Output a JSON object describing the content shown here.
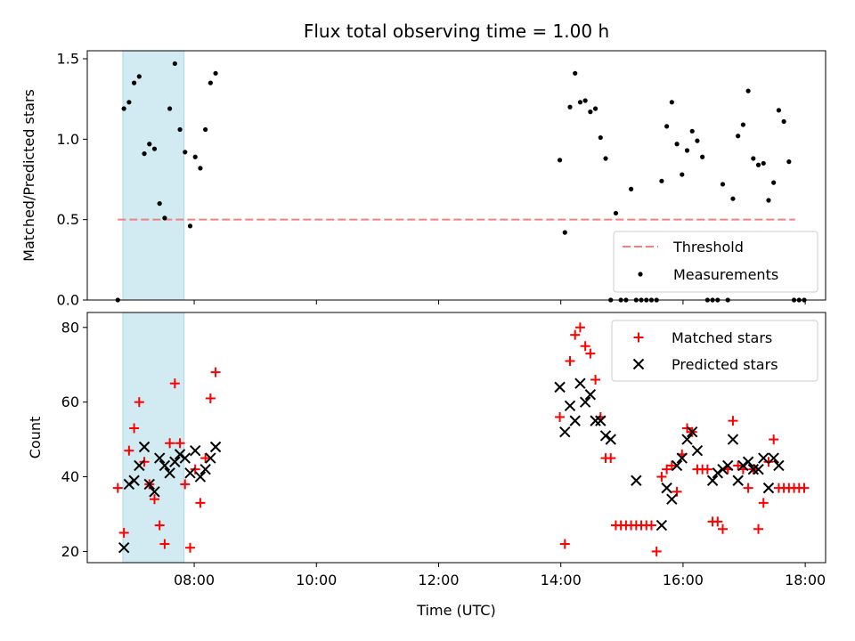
{
  "chart_data": [
    {
      "type": "scatter",
      "title": "Flux total observing time = 1.00 h",
      "xlabel": "",
      "ylabel": "Matched/Predicted stars",
      "xlim": [
        "06:15",
        "18:20"
      ],
      "ylim": [
        0,
        1.55
      ],
      "yticks": [
        0.0,
        0.5,
        1.0,
        1.5
      ],
      "ytick_labels": [
        "0.0",
        "0.5",
        "1.0",
        "1.5"
      ],
      "highlight_span": [
        "06:50",
        "07:50"
      ],
      "threshold": {
        "name": "Threshold",
        "y": 0.5,
        "x": [
          "06:45",
          "17:50"
        ],
        "color": "#f08080"
      },
      "legend": {
        "location": "lower right",
        "entries": [
          "Threshold",
          "Measurements"
        ]
      },
      "series": [
        {
          "name": "Measurements",
          "color": "#000000",
          "marker": "dot",
          "points": [
            [
              "06:45",
              0.0
            ],
            [
              "06:51",
              1.19
            ],
            [
              "06:56",
              1.23
            ],
            [
              "07:01",
              1.35
            ],
            [
              "07:06",
              1.39
            ],
            [
              "07:11",
              0.91
            ],
            [
              "07:16",
              0.97
            ],
            [
              "07:21",
              0.94
            ],
            [
              "07:26",
              0.6
            ],
            [
              "07:31",
              0.51
            ],
            [
              "07:36",
              1.19
            ],
            [
              "07:41",
              1.47
            ],
            [
              "07:46",
              1.06
            ],
            [
              "07:51",
              0.92
            ],
            [
              "07:56",
              0.46
            ],
            [
              "08:01",
              0.89
            ],
            [
              "08:06",
              0.82
            ],
            [
              "08:11",
              1.06
            ],
            [
              "08:16",
              1.35
            ],
            [
              "08:21",
              1.41
            ],
            [
              "13:59",
              0.87
            ],
            [
              "14:04",
              0.42
            ],
            [
              "14:09",
              1.2
            ],
            [
              "14:14",
              1.41
            ],
            [
              "14:19",
              1.23
            ],
            [
              "14:24",
              1.24
            ],
            [
              "14:29",
              1.17
            ],
            [
              "14:34",
              1.19
            ],
            [
              "14:39",
              1.01
            ],
            [
              "14:44",
              0.88
            ],
            [
              "14:49",
              0.0
            ],
            [
              "14:54",
              0.54
            ],
            [
              "14:59",
              0.0
            ],
            [
              "15:04",
              0.0
            ],
            [
              "15:09",
              0.69
            ],
            [
              "15:14",
              0.0
            ],
            [
              "15:19",
              0.0
            ],
            [
              "15:24",
              0.0
            ],
            [
              "15:29",
              0.0
            ],
            [
              "15:34",
              0.0
            ],
            [
              "15:39",
              0.74
            ],
            [
              "15:44",
              1.08
            ],
            [
              "15:49",
              1.23
            ],
            [
              "15:54",
              0.97
            ],
            [
              "15:59",
              0.78
            ],
            [
              "16:04",
              0.93
            ],
            [
              "16:09",
              1.05
            ],
            [
              "16:14",
              0.99
            ],
            [
              "16:19",
              0.89
            ],
            [
              "16:24",
              0.0
            ],
            [
              "16:29",
              0.0
            ],
            [
              "16:34",
              0.0
            ],
            [
              "16:39",
              0.72
            ],
            [
              "16:44",
              0.0
            ],
            [
              "16:49",
              0.63
            ],
            [
              "16:54",
              1.02
            ],
            [
              "16:59",
              1.09
            ],
            [
              "17:04",
              1.3
            ],
            [
              "17:09",
              0.88
            ],
            [
              "17:14",
              0.84
            ],
            [
              "17:19",
              0.85
            ],
            [
              "17:24",
              0.62
            ],
            [
              "17:29",
              0.73
            ],
            [
              "17:34",
              1.18
            ],
            [
              "17:39",
              1.11
            ],
            [
              "17:44",
              0.86
            ],
            [
              "17:49",
              0.0
            ],
            [
              "17:54",
              0.0
            ],
            [
              "17:59",
              0.0
            ]
          ]
        }
      ]
    },
    {
      "type": "scatter",
      "title": "",
      "xlabel": "Time (UTC)",
      "ylabel": "Count",
      "xlim": [
        "06:15",
        "18:20"
      ],
      "ylim": [
        17,
        84
      ],
      "yticks": [
        20,
        40,
        60,
        80
      ],
      "ytick_labels": [
        "20",
        "40",
        "60",
        "80"
      ],
      "xticks": [
        "08:00",
        "10:00",
        "12:00",
        "14:00",
        "16:00",
        "18:00"
      ],
      "highlight_span": [
        "06:50",
        "07:50"
      ],
      "legend": {
        "location": "upper right",
        "entries": [
          "Matched stars",
          "Predicted stars"
        ]
      },
      "series": [
        {
          "name": "Matched stars",
          "color": "#ff0000",
          "marker": "plus",
          "points": [
            [
              "06:45",
              37
            ],
            [
              "06:51",
              25
            ],
            [
              "06:56",
              47
            ],
            [
              "07:01",
              53
            ],
            [
              "07:06",
              60
            ],
            [
              "07:11",
              44
            ],
            [
              "07:16",
              38
            ],
            [
              "07:21",
              34
            ],
            [
              "07:26",
              27
            ],
            [
              "07:31",
              22
            ],
            [
              "07:36",
              49
            ],
            [
              "07:41",
              65
            ],
            [
              "07:46",
              49
            ],
            [
              "07:51",
              38
            ],
            [
              "07:56",
              21
            ],
            [
              "08:01",
              42
            ],
            [
              "08:06",
              33
            ],
            [
              "08:11",
              45
            ],
            [
              "08:16",
              61
            ],
            [
              "08:21",
              68
            ],
            [
              "13:59",
              56
            ],
            [
              "14:04",
              22
            ],
            [
              "14:09",
              71
            ],
            [
              "14:14",
              78
            ],
            [
              "14:19",
              80
            ],
            [
              "14:24",
              75
            ],
            [
              "14:29",
              73
            ],
            [
              "14:34",
              66
            ],
            [
              "14:39",
              56
            ],
            [
              "14:44",
              45
            ],
            [
              "14:49",
              45
            ],
            [
              "14:54",
              27
            ],
            [
              "14:59",
              27
            ],
            [
              "15:04",
              27
            ],
            [
              "15:09",
              27
            ],
            [
              "15:14",
              27
            ],
            [
              "15:19",
              27
            ],
            [
              "15:24",
              27
            ],
            [
              "15:29",
              27
            ],
            [
              "15:34",
              20
            ],
            [
              "15:39",
              40
            ],
            [
              "15:44",
              42
            ],
            [
              "15:49",
              43
            ],
            [
              "15:54",
              36
            ],
            [
              "15:59",
              46
            ],
            [
              "16:04",
              53
            ],
            [
              "16:09",
              52
            ],
            [
              "16:14",
              42
            ],
            [
              "16:19",
              42
            ],
            [
              "16:24",
              42
            ],
            [
              "16:29",
              28
            ],
            [
              "16:34",
              28
            ],
            [
              "16:39",
              26
            ],
            [
              "16:44",
              42
            ],
            [
              "16:49",
              55
            ],
            [
              "16:54",
              43
            ],
            [
              "16:59",
              42
            ],
            [
              "17:04",
              37
            ],
            [
              "17:09",
              42
            ],
            [
              "17:14",
              26
            ],
            [
              "17:19",
              33
            ],
            [
              "17:24",
              44
            ],
            [
              "17:29",
              50
            ],
            [
              "17:34",
              37
            ],
            [
              "17:39",
              37
            ],
            [
              "17:44",
              37
            ],
            [
              "17:49",
              37
            ],
            [
              "17:54",
              37
            ],
            [
              "17:59",
              37
            ]
          ]
        },
        {
          "name": "Predicted stars",
          "color": "#000000",
          "marker": "x",
          "points": [
            [
              "06:51",
              21
            ],
            [
              "06:56",
              38
            ],
            [
              "07:01",
              39
            ],
            [
              "07:06",
              43
            ],
            [
              "07:11",
              48
            ],
            [
              "07:16",
              38
            ],
            [
              "07:21",
              36
            ],
            [
              "07:26",
              45
            ],
            [
              "07:31",
              43
            ],
            [
              "07:36",
              41
            ],
            [
              "07:41",
              44
            ],
            [
              "07:46",
              46
            ],
            [
              "07:51",
              45
            ],
            [
              "07:56",
              41
            ],
            [
              "08:01",
              47
            ],
            [
              "08:06",
              40
            ],
            [
              "08:11",
              42
            ],
            [
              "08:16",
              45
            ],
            [
              "08:21",
              48
            ],
            [
              "13:59",
              64
            ],
            [
              "14:04",
              52
            ],
            [
              "14:09",
              59
            ],
            [
              "14:14",
              55
            ],
            [
              "14:19",
              65
            ],
            [
              "14:24",
              60
            ],
            [
              "14:29",
              62
            ],
            [
              "14:34",
              55
            ],
            [
              "14:39",
              55
            ],
            [
              "14:44",
              51
            ],
            [
              "14:49",
              50
            ],
            [
              "15:14",
              39
            ],
            [
              "15:39",
              27
            ],
            [
              "15:44",
              37
            ],
            [
              "15:49",
              34
            ],
            [
              "15:54",
              43
            ],
            [
              "15:59",
              45
            ],
            [
              "16:04",
              50
            ],
            [
              "16:09",
              52
            ],
            [
              "16:14",
              47
            ],
            [
              "16:29",
              39
            ],
            [
              "16:34",
              41
            ],
            [
              "16:39",
              42
            ],
            [
              "16:44",
              43
            ],
            [
              "16:49",
              50
            ],
            [
              "16:54",
              39
            ],
            [
              "16:59",
              43
            ],
            [
              "17:04",
              44
            ],
            [
              "17:09",
              42
            ],
            [
              "17:14",
              42
            ],
            [
              "17:19",
              45
            ],
            [
              "17:24",
              37
            ],
            [
              "17:29",
              45
            ],
            [
              "17:34",
              43
            ]
          ]
        }
      ]
    }
  ]
}
